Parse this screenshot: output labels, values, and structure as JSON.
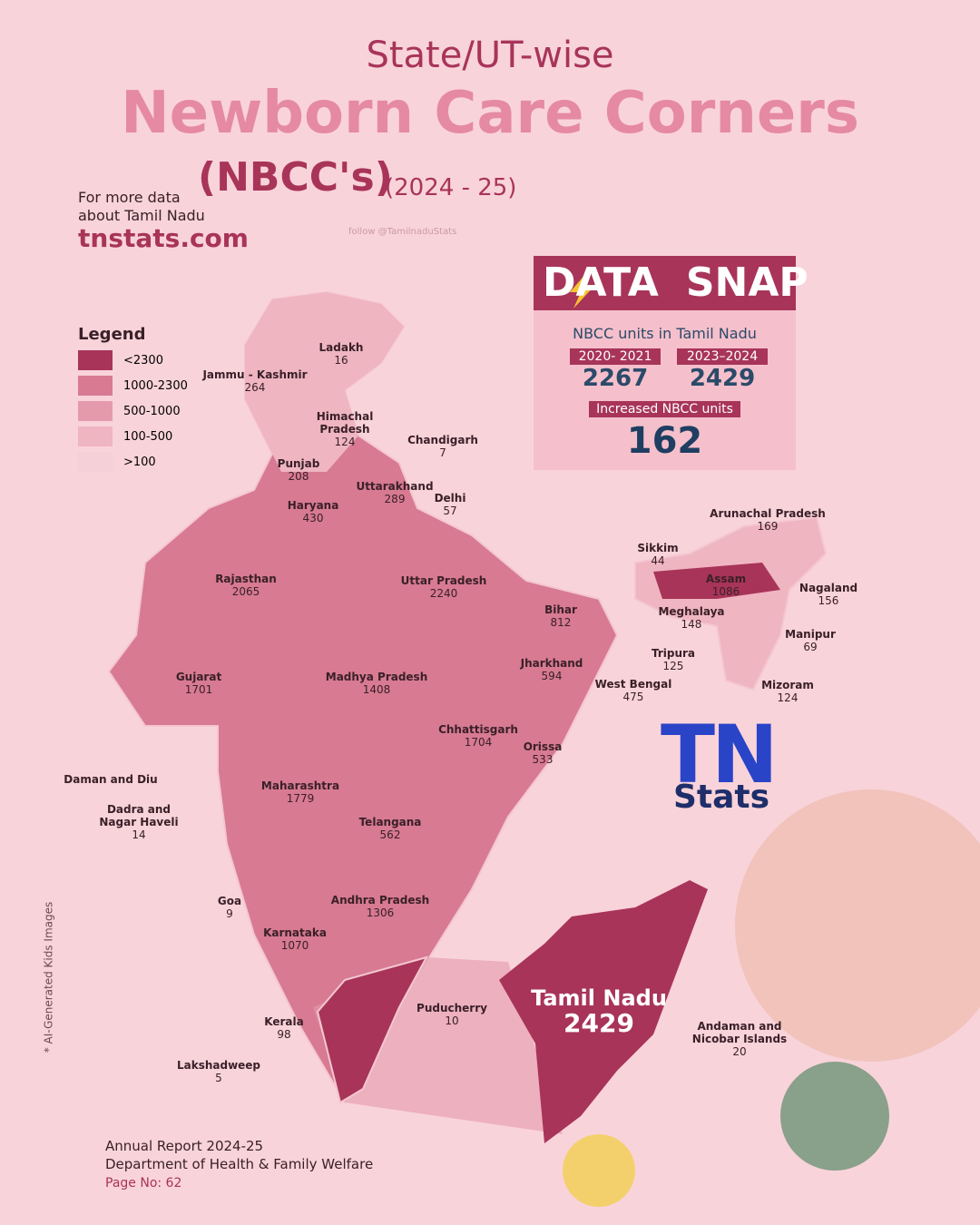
{
  "header": {
    "line1": "State/UT-wise",
    "title": "Newborn Care Corners",
    "subtitle": "(NBCC's)",
    "period": "(2024 - 25)",
    "more_data": "For more data",
    "about": "about Tamil Nadu",
    "site": "tnstats.com",
    "follow": "follow @TamilnaduStats"
  },
  "legend": {
    "title": "Legend",
    "items": [
      {
        "label": "<2300",
        "color": "#a8345a"
      },
      {
        "label": "1000-2300",
        "color": "#d77a92"
      },
      {
        "label": "500-1000",
        "color": "#e59aab"
      },
      {
        "label": "100-500",
        "color": "#efb5c1"
      },
      {
        "label": ">100",
        "color": "#f6d0d8"
      }
    ]
  },
  "states": [
    {
      "name": "Ladakh",
      "value": 16
    },
    {
      "name": "Jammu - Kashmir",
      "value": 264
    },
    {
      "name": "Himachal Pradesh",
      "value": 124
    },
    {
      "name": "Chandigarh",
      "value": 7
    },
    {
      "name": "Punjab",
      "value": 208
    },
    {
      "name": "Uttarakhand",
      "value": 289
    },
    {
      "name": "Haryana",
      "value": 430
    },
    {
      "name": "Delhi",
      "value": 57
    },
    {
      "name": "Rajasthan",
      "value": 2065
    },
    {
      "name": "Uttar Pradesh",
      "value": 2240
    },
    {
      "name": "Gujarat",
      "value": 1701
    },
    {
      "name": "Madhya Pradesh",
      "value": 1408
    },
    {
      "name": "Bihar",
      "value": 812
    },
    {
      "name": "Jharkhand",
      "value": 594
    },
    {
      "name": "West Bengal",
      "value": 475
    },
    {
      "name": "Chhattisgarh",
      "value": 1704
    },
    {
      "name": "Orissa",
      "value": 533
    },
    {
      "name": "Maharashtra",
      "value": 1779
    },
    {
      "name": "Telangana",
      "value": 562
    },
    {
      "name": "Andhra Pradesh",
      "value": 1306
    },
    {
      "name": "Karnataka",
      "value": 1070
    },
    {
      "name": "Goa",
      "value": 9
    },
    {
      "name": "Kerala",
      "value": 98
    },
    {
      "name": "Puducherry",
      "value": 10
    },
    {
      "name": "Lakshadweep",
      "value": 5
    },
    {
      "name": "Daman and Diu"
    },
    {
      "name": "Dadra and Nagar Haveli",
      "value": 14
    },
    {
      "name": "Andaman and Nicobar Islands",
      "value": 20
    },
    {
      "name": "Sikkim",
      "value": 44
    },
    {
      "name": "Arunachal Pradesh",
      "value": 169
    },
    {
      "name": "Assam",
      "value": 1086
    },
    {
      "name": "Nagaland",
      "value": 156
    },
    {
      "name": "Meghalaya",
      "value": 148
    },
    {
      "name": "Manipur",
      "value": 69
    },
    {
      "name": "Tripura",
      "value": 125
    },
    {
      "name": "Mizoram",
      "value": 124
    }
  ],
  "highlight": {
    "name": "Tamil Nadu",
    "value": 2429
  },
  "datasnap": {
    "brand_left": "DATA",
    "brand_right": "SNAP",
    "heading": "NBCC units in Tamil Nadu",
    "periods": [
      {
        "label": "2020- 2021",
        "value": 2267
      },
      {
        "label": "2023–2024",
        "value": 2429
      }
    ],
    "increase_label": "Increased NBCC units",
    "increase": 162
  },
  "logo": {
    "mark": "TN",
    "word": "Stats"
  },
  "footer": {
    "line1": "Annual Report 2024-25",
    "line2": "Department of Health & Family Welfare",
    "page": "Page No: 62"
  },
  "note": "* AI-Generated Kids Images"
}
